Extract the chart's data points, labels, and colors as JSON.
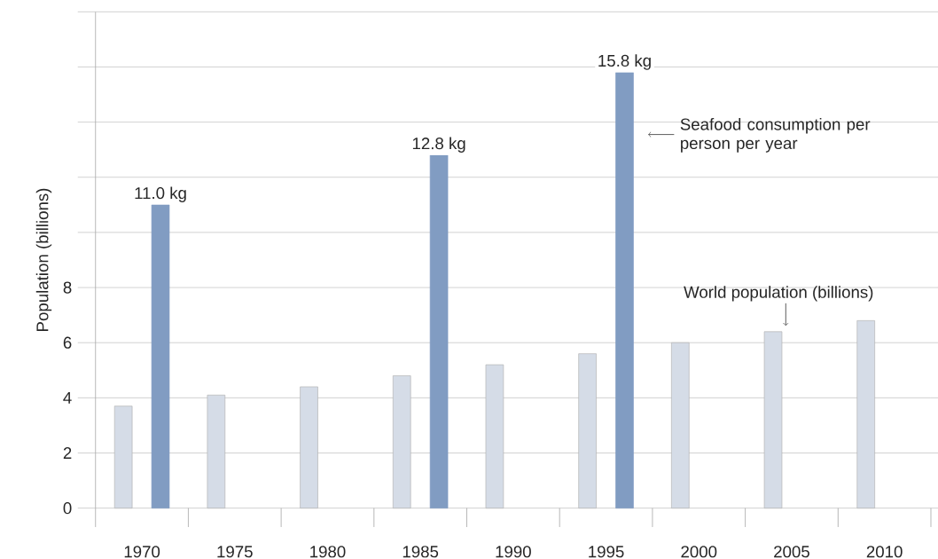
{
  "chart_data": {
    "type": "bar",
    "ylabel": "Population (billions)",
    "categories": [
      "1970",
      "1975",
      "1980",
      "1985",
      "1990",
      "1995",
      "2000",
      "2005",
      "2010"
    ],
    "series": [
      {
        "name": "World population (billions)",
        "color": "#d5dce7",
        "values": [
          3.7,
          4.1,
          4.4,
          4.8,
          5.2,
          5.6,
          6.0,
          6.4,
          6.8
        ]
      },
      {
        "name": "Seafood consumption per person per year",
        "color": "#819cc2",
        "values": [
          11.0,
          null,
          null,
          12.8,
          null,
          15.8,
          null,
          null,
          null
        ],
        "value_labels": [
          "11.0 kg",
          null,
          null,
          "12.8 kg",
          null,
          "15.8 kg",
          null,
          null,
          null
        ]
      }
    ],
    "ylim": [
      0,
      18
    ],
    "yticks": [
      0,
      2,
      4,
      6,
      8,
      {
        "value": 10,
        "label": null
      },
      {
        "value": 12,
        "label": null
      },
      {
        "value": 14,
        "label": null
      },
      {
        "value": 16,
        "label": null
      },
      {
        "value": 18,
        "label": null
      }
    ],
    "grid": "y"
  }
}
